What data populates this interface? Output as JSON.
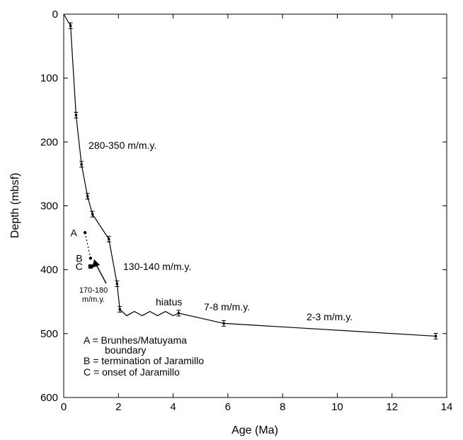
{
  "chart_data": {
    "type": "line",
    "xlabel": "Age (Ma)",
    "ylabel": "Depth (mbsf)",
    "xlim": [
      0,
      14
    ],
    "ylim": [
      0,
      600
    ],
    "y_inverted": true,
    "xticks": [
      0,
      2,
      4,
      6,
      8,
      10,
      12,
      14
    ],
    "yticks": [
      0,
      100,
      200,
      300,
      400,
      500,
      600
    ],
    "grid": false,
    "series": [
      {
        "values_xy": [
          [
            0,
            0
          ],
          [
            0.25,
            18
          ],
          [
            0.45,
            158
          ],
          [
            0.65,
            235
          ],
          [
            0.87,
            285
          ],
          [
            1.05,
            313
          ],
          [
            1.65,
            352
          ],
          [
            1.95,
            422
          ],
          [
            2.05,
            462
          ],
          [
            2.3,
            472
          ],
          [
            4.2,
            468
          ],
          [
            5.85,
            484
          ],
          [
            13.6,
            504
          ]
        ],
        "errorbar_points": [
          [
            0.25,
            18
          ],
          [
            0.45,
            158
          ],
          [
            0.65,
            235
          ],
          [
            0.87,
            285
          ],
          [
            1.05,
            313
          ],
          [
            1.65,
            352
          ],
          [
            1.95,
            422
          ],
          [
            2.05,
            462
          ],
          [
            4.2,
            468
          ],
          [
            5.85,
            484
          ],
          [
            13.6,
            504
          ]
        ]
      }
    ],
    "hiatus": {
      "x_range": [
        2.3,
        4.0
      ],
      "y_base": 472,
      "label": "hiatus"
    },
    "markers": [
      {
        "id": "A",
        "label": "A",
        "x": 0.78,
        "y": 342
      },
      {
        "id": "B",
        "label": "B",
        "x": 0.98,
        "y": 382
      },
      {
        "id": "C",
        "label": "C",
        "x": 0.98,
        "y": 395
      }
    ],
    "annotations": {
      "rate1": "280-350  m/m.y.",
      "rate2": "130-140  m/m.y.",
      "rate3": "7-8 m/m.y.",
      "rate4": "2-3  m/m.y.",
      "hiatus": "hiatus",
      "small_rate_line1": "170-180",
      "small_rate_line2": "m/m.y."
    },
    "key": {
      "line1": "A = Brunhes/Matuyama",
      "line2": "boundary",
      "line3": "B = termination of Jaramillo",
      "line4": "C = onset of Jaramillo"
    }
  }
}
